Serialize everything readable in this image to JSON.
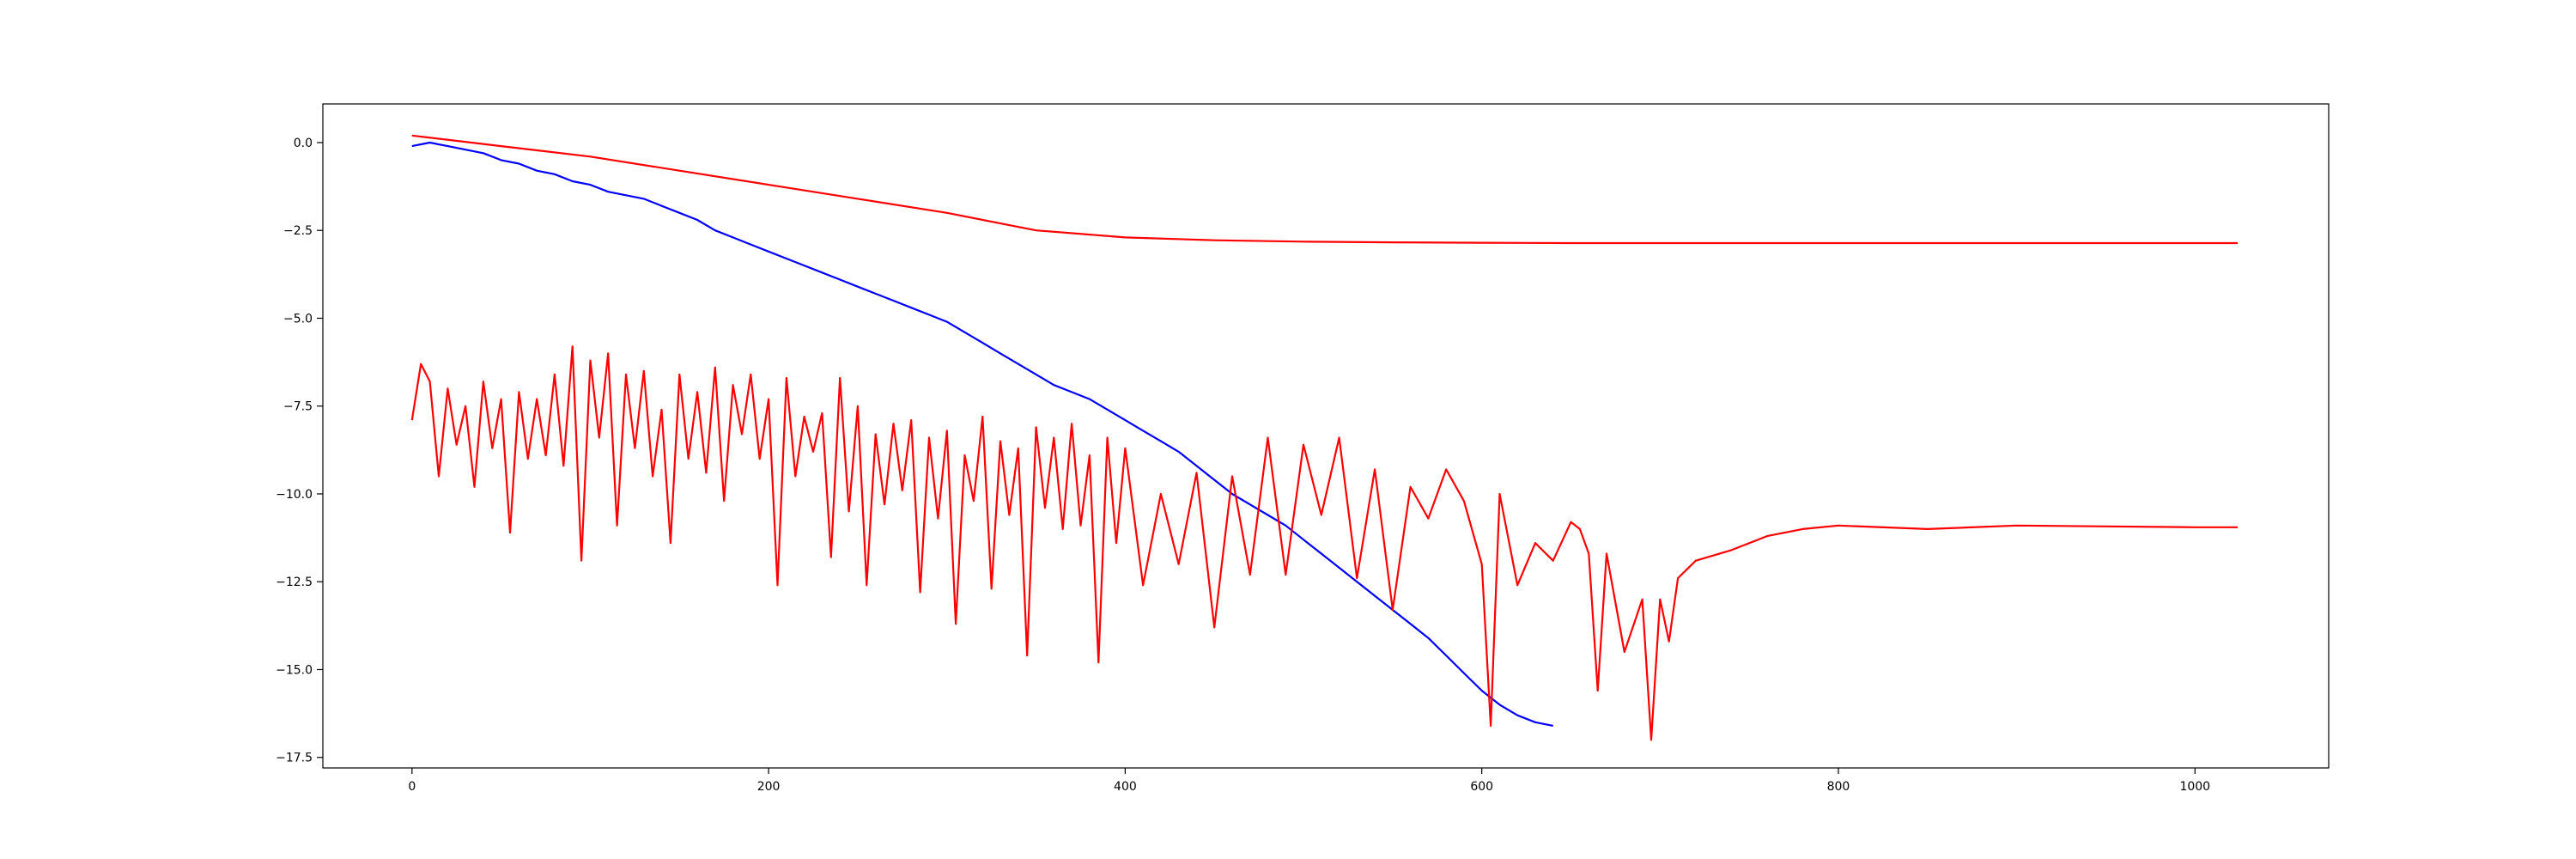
{
  "chart_data": {
    "type": "line",
    "title": "",
    "xlabel": "",
    "ylabel": "",
    "xlim": [
      -50,
      1075
    ],
    "ylim": [
      -17.8,
      1.1
    ],
    "grid": false,
    "legend": "none",
    "x_ticks": [
      0,
      200,
      400,
      600,
      800,
      1000
    ],
    "x_tick_labels": [
      "0",
      "200",
      "400",
      "600",
      "800",
      "1000"
    ],
    "y_ticks": [
      0.0,
      -2.5,
      -5.0,
      -7.5,
      -10.0,
      -12.5,
      -15.0,
      -17.5
    ],
    "y_tick_labels": [
      "0.0",
      "−2.5",
      "−5.0",
      "−7.5",
      "−10.0",
      "−12.5",
      "−15.0",
      "−17.5"
    ],
    "series": [
      {
        "color": "#0000ff",
        "x": [
          0,
          10,
          20,
          30,
          40,
          50,
          60,
          70,
          80,
          90,
          100,
          110,
          120,
          130,
          140,
          150,
          160,
          170,
          180,
          190,
          200,
          210,
          220,
          230,
          240,
          250,
          260,
          270,
          280,
          290,
          300,
          310,
          320,
          330,
          340,
          350,
          360,
          370,
          380,
          390,
          400,
          410,
          420,
          430,
          440,
          450,
          460,
          470,
          480,
          490,
          500,
          510,
          520,
          530,
          540,
          550,
          560,
          570,
          580,
          590,
          600,
          610,
          620,
          630,
          640
        ],
        "values": [
          -0.1,
          0.0,
          -0.1,
          -0.2,
          -0.3,
          -0.5,
          -0.6,
          -0.8,
          -0.9,
          -1.1,
          -1.2,
          -1.4,
          -1.5,
          -1.6,
          -1.8,
          -2.0,
          -2.2,
          -2.5,
          -2.7,
          -2.9,
          -3.1,
          -3.3,
          -3.5,
          -3.7,
          -3.9,
          -4.1,
          -4.3,
          -4.5,
          -4.7,
          -4.9,
          -5.1,
          -5.4,
          -5.7,
          -6.0,
          -6.3,
          -6.6,
          -6.9,
          -7.1,
          -7.3,
          -7.6,
          -7.9,
          -8.2,
          -8.5,
          -8.8,
          -9.2,
          -9.6,
          -10.0,
          -10.3,
          -10.6,
          -10.9,
          -11.3,
          -11.7,
          -12.1,
          -12.5,
          -12.9,
          -13.3,
          -13.7,
          -14.1,
          -14.6,
          -15.1,
          -15.6,
          -16.0,
          -16.3,
          -16.5,
          -16.6
        ]
      },
      {
        "color": "#ff0000",
        "x": [
          0,
          50,
          100,
          150,
          200,
          250,
          300,
          350,
          400,
          450,
          500,
          550,
          600,
          650,
          700,
          800,
          900,
          1024
        ],
        "values": [
          0.2,
          -0.1,
          -0.4,
          -0.8,
          -1.2,
          -1.6,
          -2.0,
          -2.5,
          -2.7,
          -2.78,
          -2.82,
          -2.84,
          -2.85,
          -2.86,
          -2.86,
          -2.86,
          -2.86,
          -2.86
        ]
      },
      {
        "color": "#ff0000",
        "x": [
          0,
          5,
          10,
          15,
          20,
          25,
          30,
          35,
          40,
          45,
          50,
          55,
          60,
          65,
          70,
          75,
          80,
          85,
          90,
          95,
          100,
          105,
          110,
          115,
          120,
          125,
          130,
          135,
          140,
          145,
          150,
          155,
          160,
          165,
          170,
          175,
          180,
          185,
          190,
          195,
          200,
          205,
          210,
          215,
          220,
          225,
          230,
          235,
          240,
          245,
          250,
          255,
          260,
          265,
          270,
          275,
          280,
          285,
          290,
          295,
          300,
          305,
          310,
          315,
          320,
          325,
          330,
          335,
          340,
          345,
          350,
          355,
          360,
          365,
          370,
          375,
          380,
          385,
          390,
          395,
          400,
          410,
          420,
          430,
          440,
          450,
          460,
          470,
          480,
          490,
          500,
          510,
          520,
          530,
          540,
          550,
          560,
          570,
          580,
          590,
          600,
          605,
          610,
          620,
          630,
          640,
          650,
          655,
          660,
          665,
          670,
          680,
          690,
          695,
          700,
          705,
          710,
          720,
          740,
          760,
          780,
          800,
          850,
          900,
          1000,
          1024
        ],
        "values": [
          -7.9,
          -6.3,
          -6.8,
          -9.5,
          -7.0,
          -8.6,
          -7.5,
          -9.8,
          -6.8,
          -8.7,
          -7.3,
          -11.1,
          -7.1,
          -9.0,
          -7.3,
          -8.9,
          -6.6,
          -9.2,
          -5.8,
          -11.9,
          -6.2,
          -8.4,
          -6.0,
          -10.9,
          -6.6,
          -8.7,
          -6.5,
          -9.5,
          -7.6,
          -11.4,
          -6.6,
          -9.0,
          -7.1,
          -9.4,
          -6.4,
          -10.2,
          -6.9,
          -8.3,
          -6.6,
          -9.0,
          -7.3,
          -12.6,
          -6.7,
          -9.5,
          -7.8,
          -8.8,
          -7.7,
          -11.8,
          -6.7,
          -10.5,
          -7.5,
          -12.6,
          -8.3,
          -10.3,
          -8.0,
          -9.9,
          -7.9,
          -12.8,
          -8.4,
          -10.7,
          -8.2,
          -13.7,
          -8.9,
          -10.2,
          -7.8,
          -12.7,
          -8.5,
          -10.6,
          -8.7,
          -14.6,
          -8.1,
          -10.4,
          -8.4,
          -11.0,
          -8.0,
          -10.9,
          -8.9,
          -14.8,
          -8.4,
          -11.4,
          -8.7,
          -12.6,
          -10.0,
          -12.0,
          -9.4,
          -13.8,
          -9.5,
          -12.3,
          -8.4,
          -12.3,
          -8.6,
          -10.6,
          -8.4,
          -12.4,
          -9.3,
          -13.3,
          -9.8,
          -10.7,
          -9.3,
          -10.2,
          -12.0,
          -16.6,
          -10.0,
          -12.6,
          -11.4,
          -11.9,
          -10.8,
          -11.0,
          -11.7,
          -15.6,
          -11.7,
          -14.5,
          -13.0,
          -17.0,
          -13.0,
          -14.2,
          -12.4,
          -11.9,
          -11.6,
          -11.2,
          -11.0,
          -10.9,
          -11.0,
          -10.9,
          -10.95,
          -10.95
        ]
      }
    ]
  }
}
